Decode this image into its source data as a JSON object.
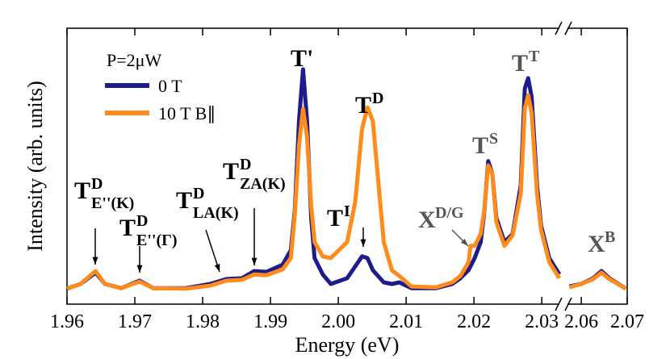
{
  "chart_data": {
    "type": "line",
    "x_label": "Energy (eV)",
    "y_label": "Intensity (arb. units)",
    "legend_title": "P=2μW",
    "legend_position": "upper left",
    "xlim": [
      1.96,
      2.07
    ],
    "x_break": [
      2.0326,
      2.057
    ],
    "xticks": [
      1.96,
      1.97,
      1.98,
      1.99,
      {
        "value": 2,
        "label": "2.00"
      },
      2.01,
      2.02,
      2.03,
      2.06,
      2.07
    ],
    "ylim": [
      0,
      1
    ],
    "x": [
      1.96,
      1.962,
      1.9642,
      1.9656,
      1.968,
      1.9707,
      1.9727,
      1.9775,
      1.9811,
      1.9835,
      1.9858,
      1.9876,
      1.9894,
      1.9918,
      1.993,
      1.9936,
      1.9942,
      1.9948,
      1.9954,
      1.996,
      1.9965,
      1.9977,
      1.9989,
      2.0013,
      2.0025,
      2.0035,
      2.0043,
      2.0051,
      2.0067,
      2.0079,
      2.009,
      2.0108,
      2.0144,
      2.0168,
      2.018,
      2.0192,
      2.0195,
      2.0201,
      2.021,
      2.0215,
      2.0221,
      2.0227,
      2.0233,
      2.0245,
      2.0257,
      2.0269,
      2.0275,
      2.028,
      2.0285,
      2.0293,
      2.0299,
      2.0311,
      2.0326,
      null,
      2.0574,
      2.06,
      2.0626,
      2.0644,
      2.0661,
      2.0697
    ],
    "series": [
      {
        "name": "0 T",
        "color": "#1c1c8c",
        "values": [
          0.056,
          0.073,
          0.114,
          0.073,
          0.058,
          0.085,
          0.058,
          0.058,
          0.073,
          0.091,
          0.094,
          0.12,
          0.117,
          0.143,
          0.196,
          0.342,
          0.664,
          0.851,
          0.664,
          0.313,
          0.167,
          0.108,
          0.073,
          0.094,
          0.137,
          0.173,
          0.167,
          0.123,
          0.079,
          0.073,
          0.079,
          0.058,
          0.058,
          0.073,
          0.094,
          0.123,
          0.137,
          0.167,
          0.225,
          0.327,
          0.518,
          0.474,
          0.313,
          0.225,
          0.254,
          0.43,
          0.781,
          0.819,
          0.751,
          0.43,
          0.284,
          0.167,
          0.108,
          null,
          0.064,
          0.073,
          0.094,
          0.12,
          0.094,
          0.056
        ]
      },
      {
        "name": "10 T B∥",
        "color": "#ff8c1a",
        "values": [
          0.056,
          0.073,
          0.12,
          0.073,
          0.058,
          0.082,
          0.058,
          0.056,
          0.067,
          0.085,
          0.088,
          0.108,
          0.105,
          0.126,
          0.167,
          0.327,
          0.576,
          0.708,
          0.605,
          0.357,
          0.225,
          0.173,
          0.167,
          0.225,
          0.371,
          0.635,
          0.713,
          0.664,
          0.225,
          0.123,
          0.102,
          0.064,
          0.061,
          0.079,
          0.102,
          0.152,
          0.211,
          0.211,
          0.254,
          0.336,
          0.503,
          0.474,
          0.298,
          0.211,
          0.249,
          0.401,
          0.708,
          0.757,
          0.693,
          0.401,
          0.269,
          0.152,
          0.094,
          null,
          0.061,
          0.073,
          0.091,
          0.114,
          0.091,
          0.056
        ]
      }
    ],
    "annotations": [
      {
        "text": "T",
        "sup": "D",
        "sub": "E''(K)"
      },
      {
        "text": "T",
        "sup": "D",
        "sub": "E''(Γ)"
      },
      {
        "text": "T",
        "sup": "D",
        "sub": "LA(K)"
      },
      {
        "text": "T",
        "sup": "D",
        "sub": "ZA(K)"
      },
      {
        "text": "T'"
      },
      {
        "text": "T",
        "sup": "D"
      },
      {
        "text": "T",
        "sup": "I"
      },
      {
        "text": "X",
        "sup": "D/G"
      },
      {
        "text": "T",
        "sup": "S"
      },
      {
        "text": "T",
        "sup": "T"
      },
      {
        "text": "X",
        "sup": "B"
      }
    ]
  }
}
